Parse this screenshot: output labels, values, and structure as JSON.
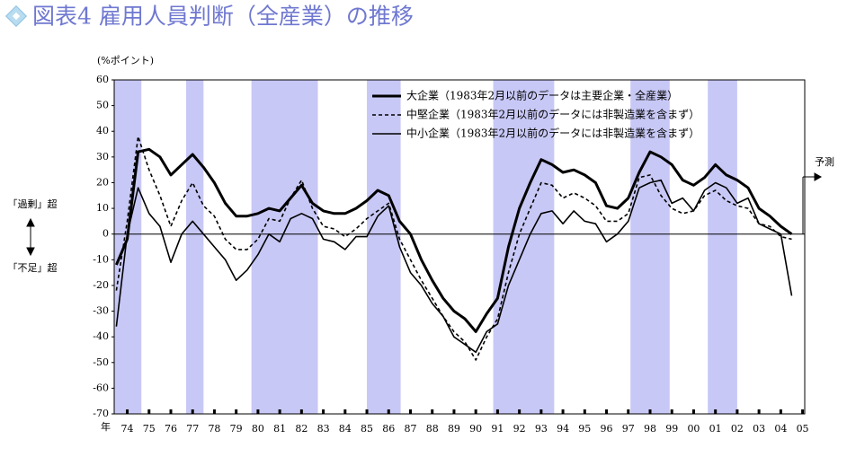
{
  "chart_data": {
    "type": "line",
    "title": "図表4 雇用人員判断（全産業）の推移",
    "y_unit": "(%ポイント)",
    "x_label": "年",
    "upper_note": "「過剰」超",
    "lower_note": "「不足」超",
    "forecast_label": "予測",
    "xlim": [
      1973.9,
      2005.6
    ],
    "xticks": [
      {
        "value": 1974.5,
        "label": "74"
      },
      {
        "value": 1975.5,
        "label": "75"
      },
      {
        "value": 1976.5,
        "label": "76"
      },
      {
        "value": 1977.5,
        "label": "77"
      },
      {
        "value": 1978.5,
        "label": "78"
      },
      {
        "value": 1979.5,
        "label": "79"
      },
      {
        "value": 1980.5,
        "label": "80"
      },
      {
        "value": 1981.5,
        "label": "81"
      },
      {
        "value": 1982.5,
        "label": "82"
      },
      {
        "value": 1983.5,
        "label": "83"
      },
      {
        "value": 1984.5,
        "label": "84"
      },
      {
        "value": 1985.5,
        "label": "85"
      },
      {
        "value": 1986.5,
        "label": "86"
      },
      {
        "value": 1987.5,
        "label": "87"
      },
      {
        "value": 1988.5,
        "label": "88"
      },
      {
        "value": 1989.5,
        "label": "89"
      },
      {
        "value": 1990.5,
        "label": "90"
      },
      {
        "value": 1991.5,
        "label": "91"
      },
      {
        "value": 1992.5,
        "label": "92"
      },
      {
        "value": 1993.5,
        "label": "93"
      },
      {
        "value": 1994.5,
        "label": "94"
      },
      {
        "value": 1995.5,
        "label": "95"
      },
      {
        "value": 1996.5,
        "label": "96"
      },
      {
        "value": 1997.5,
        "label": "97"
      },
      {
        "value": 1998.5,
        "label": "98"
      },
      {
        "value": 1999.5,
        "label": "99"
      },
      {
        "value": 2000.5,
        "label": "00"
      },
      {
        "value": 2001.5,
        "label": "01"
      },
      {
        "value": 2002.5,
        "label": "02"
      },
      {
        "value": 2003.5,
        "label": "03"
      },
      {
        "value": 2004.5,
        "label": "04"
      },
      {
        "value": 2005.5,
        "label": "05"
      }
    ],
    "ylim": [
      -70,
      60
    ],
    "yticks": [
      -70,
      -60,
      -50,
      -40,
      -30,
      -20,
      -10,
      0,
      10,
      20,
      30,
      40,
      50,
      60
    ],
    "shaded_periods": [
      [
        1973.9,
        1975.15
      ],
      [
        1977.2,
        1978.0
      ],
      [
        1980.2,
        1983.25
      ],
      [
        1985.5,
        1987.05
      ],
      [
        1991.3,
        1994.1
      ],
      [
        1997.6,
        1999.4
      ],
      [
        2001.15,
        2002.5
      ]
    ],
    "shade_color": "#c8c8f6",
    "title_color": "#6f78d0",
    "x": [
      1974.0,
      1974.5,
      1975.0,
      1975.5,
      1976.0,
      1976.5,
      1977.0,
      1977.5,
      1978.0,
      1978.5,
      1979.0,
      1979.5,
      1980.0,
      1980.5,
      1981.0,
      1981.5,
      1982.0,
      1982.5,
      1983.0,
      1983.5,
      1984.0,
      1984.5,
      1985.0,
      1985.5,
      1986.0,
      1986.5,
      1987.0,
      1987.5,
      1988.0,
      1988.5,
      1989.0,
      1989.5,
      1990.0,
      1990.5,
      1991.0,
      1991.5,
      1992.0,
      1992.5,
      1993.0,
      1993.5,
      1994.0,
      1994.5,
      1995.0,
      1995.5,
      1996.0,
      1996.5,
      1997.0,
      1997.5,
      1998.0,
      1998.5,
      1999.0,
      1999.5,
      2000.0,
      2000.5,
      2001.0,
      2001.5,
      2002.0,
      2002.5,
      2003.0,
      2003.5,
      2004.0,
      2004.5,
      2005.0
    ],
    "series": [
      {
        "name": "大企業（1983年2月以前のデータは主要企業・全産業）",
        "color": "#000000",
        "width": 3,
        "dash": "none",
        "values": [
          -12,
          -2,
          32,
          33,
          30,
          23,
          27,
          31,
          26,
          20,
          12,
          7,
          7,
          8,
          10,
          9,
          14,
          19,
          12,
          9,
          8,
          8,
          10,
          13,
          17,
          15,
          5,
          0,
          -10,
          -18,
          -25,
          -30,
          -33,
          -38,
          -31,
          -25,
          -5,
          10,
          20,
          29,
          27,
          24,
          25,
          23,
          20,
          11,
          10,
          14,
          24,
          32,
          30,
          27,
          21,
          19,
          22,
          27,
          23,
          21,
          18,
          10,
          7,
          3,
          0
        ]
      },
      {
        "name": "中堅企業（1983年2月以前のデータには非製造業を含まず）",
        "color": "#000000",
        "width": 1.6,
        "dash": "4 3",
        "values": [
          -22,
          5,
          38,
          25,
          15,
          3,
          13,
          20,
          11,
          7,
          -2,
          -6,
          -6,
          -2,
          6,
          5,
          14,
          21,
          10,
          3,
          2,
          -1,
          2,
          6,
          9,
          12,
          -2,
          -10,
          -18,
          -25,
          -32,
          -38,
          -42,
          -49,
          -40,
          -33,
          -15,
          0,
          10,
          20,
          19,
          14,
          16,
          14,
          11,
          5,
          5,
          8,
          22,
          23,
          15,
          10,
          8,
          9,
          15,
          17,
          13,
          11,
          10,
          4,
          3,
          -1,
          -2
        ]
      },
      {
        "name": "中小企業（1983年2月以前のデータには非製造業を含まず）",
        "color": "#000000",
        "width": 1.6,
        "dash": "none",
        "values": [
          -36,
          0,
          18,
          8,
          3,
          -11,
          0,
          5,
          0,
          -5,
          -10,
          -18,
          -14,
          -8,
          0,
          -3,
          6,
          8,
          6,
          -2,
          -3,
          -6,
          -1,
          -1,
          7,
          11,
          -5,
          -15,
          -20,
          -27,
          -32,
          -40,
          -43,
          -46,
          -38,
          -35,
          -20,
          -10,
          0,
          8,
          9,
          4,
          9,
          5,
          4,
          -3,
          0,
          5,
          18,
          20,
          21,
          12,
          14,
          9,
          17,
          20,
          18,
          12,
          14,
          4,
          2,
          0,
          -24
        ]
      }
    ]
  }
}
